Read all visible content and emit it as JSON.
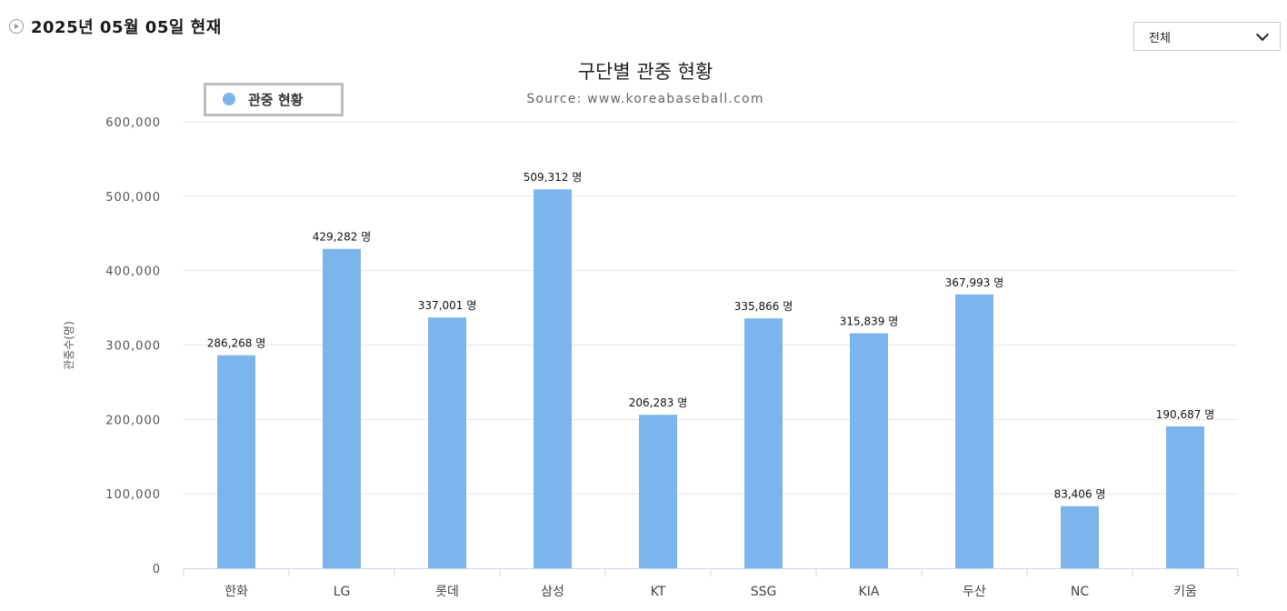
{
  "header": {
    "date_text": "2025년 05월 05일 현재"
  },
  "filter": {
    "selected": "전체"
  },
  "chart_data": {
    "type": "bar",
    "title": "구단별 관중 현황",
    "subtitle": "Source: www.koreabaseball.com",
    "ylabel": "관중수(명)",
    "xlabel": "",
    "categories": [
      "한화",
      "LG",
      "롯데",
      "삼성",
      "KT",
      "SSG",
      "KIA",
      "두산",
      "NC",
      "키움"
    ],
    "series": [
      {
        "name": "관중 현황",
        "color": "#7cb5ec",
        "values": [
          286268,
          429282,
          337001,
          509312,
          206283,
          335866,
          315839,
          367993,
          83406,
          190687
        ],
        "data_labels": [
          "286,268 명",
          "429,282 명",
          "337,001 명",
          "509,312 명",
          "206,283 명",
          "335,866 명",
          "315,839 명",
          "367,993 명",
          "83,406 명",
          "190,687 명"
        ]
      }
    ],
    "ylim": [
      0,
      600000
    ],
    "yticks": [
      0,
      100000,
      200000,
      300000,
      400000,
      500000,
      600000
    ],
    "ytick_labels": [
      "0",
      "100,000",
      "200,000",
      "300,000",
      "400,000",
      "500,000",
      "600,000"
    ],
    "grid": true,
    "legend_position": "top-left"
  }
}
